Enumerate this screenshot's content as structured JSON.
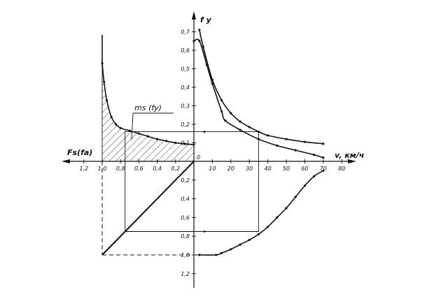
{
  "labels": {
    "fy_axis": "f y",
    "fs_axis": "Fs(fa)",
    "v_axis": "v, км/ч",
    "ms_curve": "ms (fy)",
    "origin": "0"
  },
  "ticks": {
    "fy_up": [
      "0,1",
      "0,2",
      "0,3",
      "0,4",
      "0,5",
      "0,6",
      "0,7"
    ],
    "fy_down": [
      "0,2",
      "0,4",
      "0,6",
      "0,8",
      "1,0",
      "1,2"
    ],
    "fs_left": [
      "0,2",
      "0,4",
      "0,6",
      "0,8",
      "1,0",
      "1,2"
    ],
    "v_right": [
      "10",
      "20",
      "30",
      "40",
      "50",
      "60",
      "70",
      "80"
    ]
  },
  "curves": {
    "upper_fy_v": {
      "v": [
        3,
        5,
        10,
        15,
        20,
        25,
        30,
        35,
        40,
        50,
        60,
        70
      ],
      "fy": [
        0.71,
        0.62,
        0.44,
        0.33,
        0.26,
        0.215,
        0.185,
        0.16,
        0.14,
        0.12,
        0.105,
        0.095
      ]
    },
    "lower_fy_v": {
      "v": [
        0,
        3,
        7,
        10,
        15,
        17,
        25,
        35,
        45,
        55,
        65,
        70
      ],
      "fy": [
        0.65,
        0.65,
        0.52,
        0.42,
        0.27,
        0.22,
        0.17,
        0.12,
        0.085,
        0.06,
        0.035,
        0.02
      ]
    },
    "ms_fy": {
      "fs": [
        1.0,
        0.98,
        0.95,
        0.9,
        0.85,
        0.8,
        0.7,
        0.6,
        0.5,
        0.4,
        0.3,
        0.2,
        0.1,
        0.0
      ],
      "fy": [
        0.53,
        0.43,
        0.33,
        0.24,
        0.2,
        0.18,
        0.165,
        0.15,
        0.135,
        0.12,
        0.11,
        0.1,
        0.095,
        0.09
      ]
    },
    "fa_v": {
      "v": [
        3,
        12,
        15,
        20,
        25,
        30,
        35,
        40,
        45,
        50,
        55,
        60,
        65,
        70
      ],
      "fa": [
        1.0,
        1.0,
        0.98,
        0.94,
        0.89,
        0.84,
        0.78,
        0.7,
        0.6,
        0.5,
        0.38,
        0.26,
        0.16,
        0.1
      ]
    }
  },
  "example": {
    "v": 35,
    "fy": 0.16,
    "fs": 0.75,
    "fa": 0.75
  }
}
